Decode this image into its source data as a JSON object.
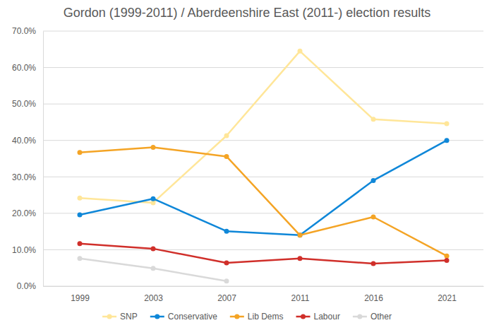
{
  "chart_data": {
    "type": "line",
    "title": "Gordon (1999-2011) / Aberdeenshire East (2011-) election results",
    "categories": [
      "1999",
      "2003",
      "2007",
      "2011",
      "2016",
      "2021"
    ],
    "series": [
      {
        "name": "SNP",
        "color": "#ffe699",
        "values": [
          24.2,
          22.9,
          41.3,
          64.5,
          45.8,
          44.6
        ]
      },
      {
        "name": "Conservative",
        "color": "#0f87d8",
        "values": [
          19.6,
          24.0,
          15.1,
          14.0,
          29.0,
          40.0
        ]
      },
      {
        "name": "Lib Dems",
        "color": "#f4a425",
        "values": [
          36.7,
          38.1,
          35.6,
          14.0,
          19.0,
          8.3
        ]
      },
      {
        "name": "Labour",
        "color": "#d02f2a",
        "values": [
          11.7,
          10.3,
          6.4,
          7.6,
          6.2,
          7.1
        ]
      },
      {
        "name": "Other",
        "color": "#d9d9d9",
        "values": [
          7.6,
          4.9,
          1.4,
          null,
          null,
          null
        ]
      }
    ],
    "ylim": [
      0,
      70
    ],
    "yticks": [
      {
        "value": 0,
        "label": "0.0%"
      },
      {
        "value": 10,
        "label": "10.0%"
      },
      {
        "value": 20,
        "label": "20.0%"
      },
      {
        "value": 30,
        "label": "30.0%"
      },
      {
        "value": 40,
        "label": "40.0%"
      },
      {
        "value": 50,
        "label": "50.0%"
      },
      {
        "value": 60,
        "label": "60.0%"
      },
      {
        "value": 70,
        "label": "70.0%"
      }
    ],
    "grid": true,
    "legend": "bottom",
    "marker": "circle"
  }
}
